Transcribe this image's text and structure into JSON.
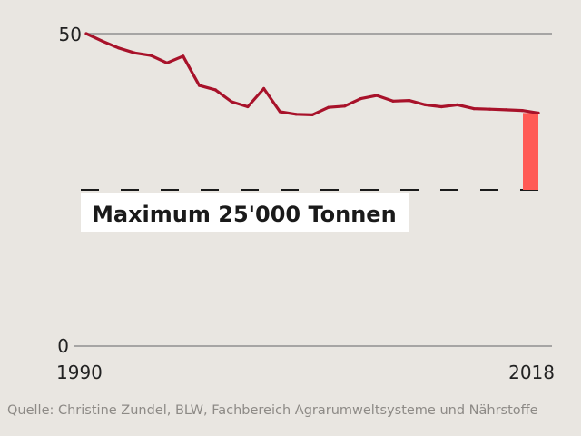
{
  "chart_data": {
    "type": "line",
    "title": "",
    "xlabel": "",
    "ylabel": "",
    "ylim": [
      0,
      50
    ],
    "xlim": [
      1990,
      2018
    ],
    "y_ticks": [
      "50",
      "0"
    ],
    "x_ticks": [
      "1990",
      "2018"
    ],
    "series": [
      {
        "color": "#a8122a",
        "x": [
          1990,
          1991,
          1992,
          1993,
          1994,
          1995,
          1996,
          1997,
          1998,
          1999,
          2000,
          2001,
          2002,
          2003,
          2004,
          2005,
          2006,
          2007,
          2008,
          2009,
          2010,
          2011,
          2012,
          2013,
          2014,
          2015,
          2016,
          2017,
          2018
        ],
        "y": [
          50.0,
          48.8,
          47.7,
          46.9,
          46.5,
          45.3,
          46.4,
          41.7,
          41.0,
          39.1,
          38.3,
          41.2,
          37.5,
          37.1,
          37.0,
          38.2,
          38.4,
          39.6,
          40.1,
          39.2,
          39.3,
          38.6,
          38.3,
          38.6,
          38.0,
          37.9,
          37.8,
          37.7,
          37.3
        ]
      }
    ],
    "target_line": {
      "value": 25,
      "style": "dashed",
      "color": "#1a1a1a"
    },
    "gap_bar": {
      "x": 2018,
      "from": 25,
      "to": 37.3,
      "color": "#ff5a55"
    },
    "annotation": "Maximum 25'000 Tonnen",
    "grid": true,
    "source": "Quelle: Christine Zundel, BLW, Fachbereich Agrarumweltsysteme und Nährstoffe"
  }
}
